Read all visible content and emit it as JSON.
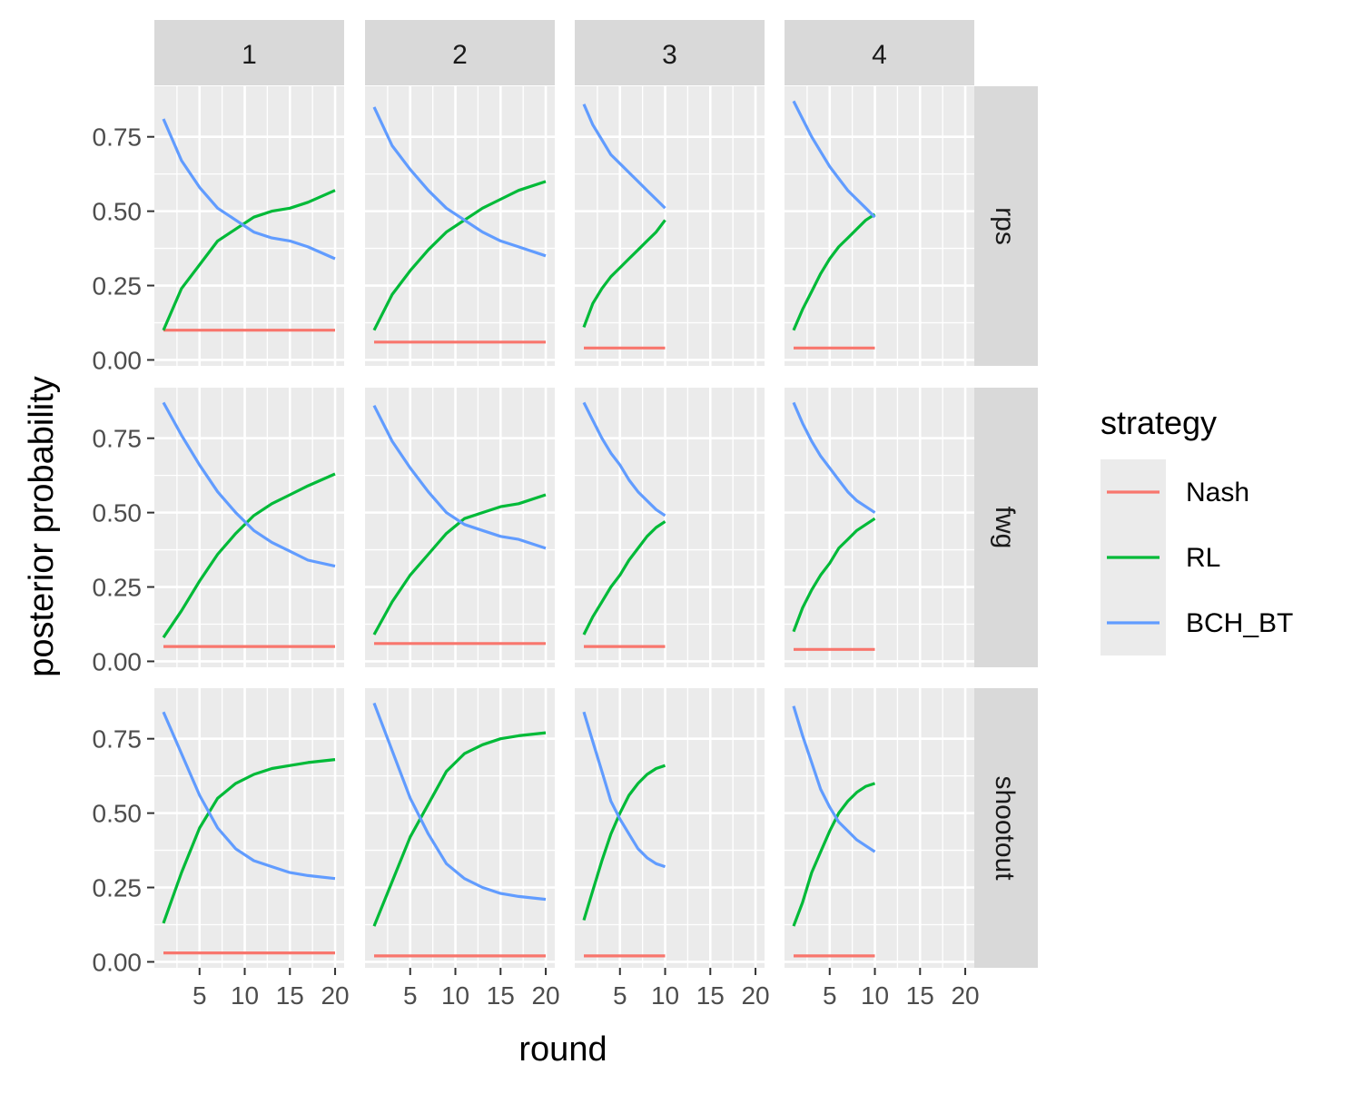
{
  "chart_data": {
    "type": "line",
    "title": "",
    "xlabel": "round",
    "ylabel": "posterior probability",
    "x_ticks": [
      "5",
      "10",
      "15",
      "20"
    ],
    "y_ticks": [
      "0.00",
      "0.25",
      "0.50",
      "0.75"
    ],
    "xlim": [
      0,
      21
    ],
    "ylim": [
      -0.02,
      0.92
    ],
    "grid": true,
    "facet_columns": [
      "1",
      "2",
      "3",
      "4"
    ],
    "facet_rows": [
      "rps",
      "fwg",
      "shootout"
    ],
    "legend": {
      "title": "strategy",
      "placement": "right",
      "entries": [
        {
          "name": "Nash",
          "color": "#F8766D"
        },
        {
          "name": "RL",
          "color": "#00BA38"
        },
        {
          "name": "BCH_BT",
          "color": "#619CFF"
        }
      ]
    },
    "panels": [
      {
        "row": "rps",
        "col": "1",
        "x": [
          1,
          3,
          5,
          7,
          9,
          11,
          13,
          15,
          17,
          20
        ],
        "series": [
          {
            "name": "Nash",
            "values": [
              0.1,
              0.1,
              0.1,
              0.1,
              0.1,
              0.1,
              0.1,
              0.1,
              0.1,
              0.1
            ]
          },
          {
            "name": "RL",
            "values": [
              0.1,
              0.24,
              0.32,
              0.4,
              0.44,
              0.48,
              0.5,
              0.51,
              0.53,
              0.57
            ]
          },
          {
            "name": "BCH_BT",
            "values": [
              0.81,
              0.67,
              0.58,
              0.51,
              0.47,
              0.43,
              0.41,
              0.4,
              0.38,
              0.34
            ]
          }
        ]
      },
      {
        "row": "rps",
        "col": "2",
        "x": [
          1,
          3,
          5,
          7,
          9,
          11,
          13,
          15,
          17,
          20
        ],
        "series": [
          {
            "name": "Nash",
            "values": [
              0.06,
              0.06,
              0.06,
              0.06,
              0.06,
              0.06,
              0.06,
              0.06,
              0.06,
              0.06
            ]
          },
          {
            "name": "RL",
            "values": [
              0.1,
              0.22,
              0.3,
              0.37,
              0.43,
              0.47,
              0.51,
              0.54,
              0.57,
              0.6
            ]
          },
          {
            "name": "BCH_BT",
            "values": [
              0.85,
              0.72,
              0.64,
              0.57,
              0.51,
              0.47,
              0.43,
              0.4,
              0.38,
              0.35
            ]
          }
        ]
      },
      {
        "row": "rps",
        "col": "3",
        "x": [
          1,
          2,
          3,
          4,
          5,
          6,
          7,
          8,
          9,
          10
        ],
        "series": [
          {
            "name": "Nash",
            "values": [
              0.04,
              0.04,
              0.04,
              0.04,
              0.04,
              0.04,
              0.04,
              0.04,
              0.04,
              0.04
            ]
          },
          {
            "name": "RL",
            "values": [
              0.11,
              0.19,
              0.24,
              0.28,
              0.31,
              0.34,
              0.37,
              0.4,
              0.43,
              0.47
            ]
          },
          {
            "name": "BCH_BT",
            "values": [
              0.86,
              0.79,
              0.74,
              0.69,
              0.66,
              0.63,
              0.6,
              0.57,
              0.54,
              0.51
            ]
          }
        ]
      },
      {
        "row": "rps",
        "col": "4",
        "x": [
          1,
          2,
          3,
          4,
          5,
          6,
          7,
          8,
          9,
          10
        ],
        "series": [
          {
            "name": "Nash",
            "values": [
              0.04,
              0.04,
              0.04,
              0.04,
              0.04,
              0.04,
              0.04,
              0.04,
              0.04,
              0.04
            ]
          },
          {
            "name": "RL",
            "values": [
              0.1,
              0.17,
              0.23,
              0.29,
              0.34,
              0.38,
              0.41,
              0.44,
              0.47,
              0.49
            ]
          },
          {
            "name": "BCH_BT",
            "values": [
              0.87,
              0.81,
              0.75,
              0.7,
              0.65,
              0.61,
              0.57,
              0.54,
              0.51,
              0.48
            ]
          }
        ]
      },
      {
        "row": "fwg",
        "col": "1",
        "x": [
          1,
          3,
          5,
          7,
          9,
          11,
          13,
          15,
          17,
          20
        ],
        "series": [
          {
            "name": "Nash",
            "values": [
              0.05,
              0.05,
              0.05,
              0.05,
              0.05,
              0.05,
              0.05,
              0.05,
              0.05,
              0.05
            ]
          },
          {
            "name": "RL",
            "values": [
              0.08,
              0.17,
              0.27,
              0.36,
              0.43,
              0.49,
              0.53,
              0.56,
              0.59,
              0.63
            ]
          },
          {
            "name": "BCH_BT",
            "values": [
              0.87,
              0.76,
              0.66,
              0.57,
              0.5,
              0.44,
              0.4,
              0.37,
              0.34,
              0.32
            ]
          }
        ]
      },
      {
        "row": "fwg",
        "col": "2",
        "x": [
          1,
          3,
          5,
          7,
          9,
          11,
          13,
          15,
          17,
          20
        ],
        "series": [
          {
            "name": "Nash",
            "values": [
              0.06,
              0.06,
              0.06,
              0.06,
              0.06,
              0.06,
              0.06,
              0.06,
              0.06,
              0.06
            ]
          },
          {
            "name": "RL",
            "values": [
              0.09,
              0.2,
              0.29,
              0.36,
              0.43,
              0.48,
              0.5,
              0.52,
              0.53,
              0.56
            ]
          },
          {
            "name": "BCH_BT",
            "values": [
              0.86,
              0.74,
              0.65,
              0.57,
              0.5,
              0.46,
              0.44,
              0.42,
              0.41,
              0.38
            ]
          }
        ]
      },
      {
        "row": "fwg",
        "col": "3",
        "x": [
          1,
          2,
          3,
          4,
          5,
          6,
          7,
          8,
          9,
          10
        ],
        "series": [
          {
            "name": "Nash",
            "values": [
              0.05,
              0.05,
              0.05,
              0.05,
              0.05,
              0.05,
              0.05,
              0.05,
              0.05,
              0.05
            ]
          },
          {
            "name": "RL",
            "values": [
              0.09,
              0.15,
              0.2,
              0.25,
              0.29,
              0.34,
              0.38,
              0.42,
              0.45,
              0.47
            ]
          },
          {
            "name": "BCH_BT",
            "values": [
              0.87,
              0.81,
              0.75,
              0.7,
              0.66,
              0.61,
              0.57,
              0.54,
              0.51,
              0.49
            ]
          }
        ]
      },
      {
        "row": "fwg",
        "col": "4",
        "x": [
          1,
          2,
          3,
          4,
          5,
          6,
          7,
          8,
          9,
          10
        ],
        "series": [
          {
            "name": "Nash",
            "values": [
              0.04,
              0.04,
              0.04,
              0.04,
              0.04,
              0.04,
              0.04,
              0.04,
              0.04,
              0.04
            ]
          },
          {
            "name": "RL",
            "values": [
              0.1,
              0.18,
              0.24,
              0.29,
              0.33,
              0.38,
              0.41,
              0.44,
              0.46,
              0.48
            ]
          },
          {
            "name": "BCH_BT",
            "values": [
              0.87,
              0.8,
              0.74,
              0.69,
              0.65,
              0.61,
              0.57,
              0.54,
              0.52,
              0.5
            ]
          }
        ]
      },
      {
        "row": "shootout",
        "col": "1",
        "x": [
          1,
          3,
          5,
          7,
          9,
          11,
          13,
          15,
          17,
          20
        ],
        "series": [
          {
            "name": "Nash",
            "values": [
              0.03,
              0.03,
              0.03,
              0.03,
              0.03,
              0.03,
              0.03,
              0.03,
              0.03,
              0.03
            ]
          },
          {
            "name": "RL",
            "values": [
              0.13,
              0.3,
              0.45,
              0.55,
              0.6,
              0.63,
              0.65,
              0.66,
              0.67,
              0.68
            ]
          },
          {
            "name": "BCH_BT",
            "values": [
              0.84,
              0.7,
              0.56,
              0.45,
              0.38,
              0.34,
              0.32,
              0.3,
              0.29,
              0.28
            ]
          }
        ]
      },
      {
        "row": "shootout",
        "col": "2",
        "x": [
          1,
          3,
          5,
          7,
          9,
          11,
          13,
          15,
          17,
          20
        ],
        "series": [
          {
            "name": "Nash",
            "values": [
              0.02,
              0.02,
              0.02,
              0.02,
              0.02,
              0.02,
              0.02,
              0.02,
              0.02,
              0.02
            ]
          },
          {
            "name": "RL",
            "values": [
              0.12,
              0.27,
              0.42,
              0.53,
              0.64,
              0.7,
              0.73,
              0.75,
              0.76,
              0.77
            ]
          },
          {
            "name": "BCH_BT",
            "values": [
              0.87,
              0.71,
              0.55,
              0.43,
              0.33,
              0.28,
              0.25,
              0.23,
              0.22,
              0.21
            ]
          }
        ]
      },
      {
        "row": "shootout",
        "col": "3",
        "x": [
          1,
          2,
          3,
          4,
          5,
          6,
          7,
          8,
          9,
          10
        ],
        "series": [
          {
            "name": "Nash",
            "values": [
              0.02,
              0.02,
              0.02,
              0.02,
              0.02,
              0.02,
              0.02,
              0.02,
              0.02,
              0.02
            ]
          },
          {
            "name": "RL",
            "values": [
              0.14,
              0.24,
              0.34,
              0.43,
              0.5,
              0.56,
              0.6,
              0.63,
              0.65,
              0.66
            ]
          },
          {
            "name": "BCH_BT",
            "values": [
              0.84,
              0.74,
              0.64,
              0.54,
              0.48,
              0.43,
              0.38,
              0.35,
              0.33,
              0.32
            ]
          }
        ]
      },
      {
        "row": "shootout",
        "col": "4",
        "x": [
          1,
          2,
          3,
          4,
          5,
          6,
          7,
          8,
          9,
          10
        ],
        "series": [
          {
            "name": "Nash",
            "values": [
              0.02,
              0.02,
              0.02,
              0.02,
              0.02,
              0.02,
              0.02,
              0.02,
              0.02,
              0.02
            ]
          },
          {
            "name": "RL",
            "values": [
              0.12,
              0.2,
              0.3,
              0.37,
              0.44,
              0.5,
              0.54,
              0.57,
              0.59,
              0.6
            ]
          },
          {
            "name": "BCH_BT",
            "values": [
              0.86,
              0.76,
              0.67,
              0.58,
              0.52,
              0.47,
              0.44,
              0.41,
              0.39,
              0.37
            ]
          }
        ]
      }
    ]
  }
}
